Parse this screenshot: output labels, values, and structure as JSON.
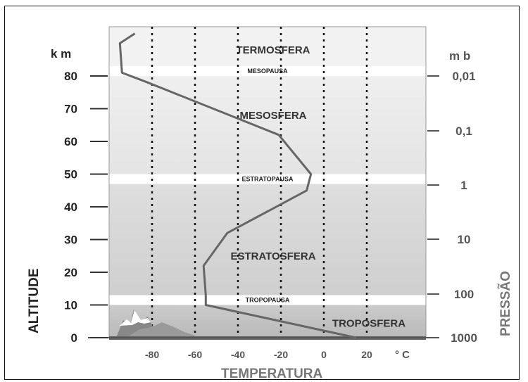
{
  "chart_data": {
    "type": "line",
    "title": "",
    "xlabel": "TEMPERATURA",
    "x_unit": "° C",
    "ylabel_left": "ALTITUDE",
    "y_unit_left": "k m",
    "ylabel_right": "PRESSÃO",
    "y_unit_right": "m b",
    "xlim": [
      -100,
      25
    ],
    "ylim": [
      0,
      95
    ],
    "x_ticks": [
      "-80",
      "-60",
      "-40",
      "-20",
      "0",
      "20"
    ],
    "y_ticks_left": [
      "0",
      "10",
      "20",
      "30",
      "40",
      "50",
      "60",
      "70",
      "80"
    ],
    "y_ticks_right": [
      "1000",
      "100",
      "10",
      "1",
      "0,1",
      "0,01"
    ],
    "gridlines_x": [
      -80,
      -60,
      -40,
      -20,
      0,
      20
    ],
    "series": [
      {
        "x": [
          15,
          -55,
          -55,
          -56,
          -45,
          -8,
          -6,
          -21,
          -82,
          -94,
          -95,
          -88
        ],
        "y": [
          0,
          10,
          13,
          22,
          32,
          45,
          50,
          62,
          78,
          81,
          90,
          93
        ]
      }
    ],
    "layers": [
      {
        "label": "TROPOSFERA",
        "from_km": 0,
        "to_km": 10
      },
      {
        "label": "TROPOPAUSA",
        "from_km": 10,
        "to_km": 13
      },
      {
        "label": "ESTRATOSFERA",
        "from_km": 13,
        "to_km": 47
      },
      {
        "label": "ESTRATOPAUSA",
        "from_km": 47,
        "to_km": 50
      },
      {
        "label": "MESOSFERA",
        "from_km": 50,
        "to_km": 80
      },
      {
        "label": "MESOPAUSA",
        "from_km": 80,
        "to_km": 83
      },
      {
        "label": "TERMOSFERA",
        "from_km": 83,
        "to_km": 95
      }
    ]
  }
}
